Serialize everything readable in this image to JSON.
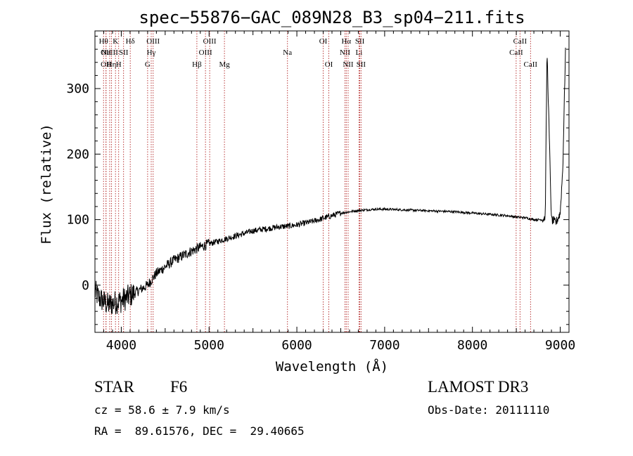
{
  "chart_data": {
    "type": "line",
    "title": "spec−55876−GAC_089N28_B3_sp04−211.fits",
    "xlabel": "Wavelength (Å)",
    "ylabel": "Flux (relative)",
    "xlim": [
      3700,
      9100
    ],
    "ylim": [
      -72,
      388
    ],
    "xticks": [
      4000,
      5000,
      6000,
      7000,
      8000,
      9000
    ],
    "yticks": [
      0,
      100,
      200,
      300
    ],
    "series": [
      {
        "name": "spectrum",
        "x": [
          3700,
          3750,
          3800,
          3850,
          3900,
          3950,
          4000,
          4050,
          4100,
          4150,
          4200,
          4300,
          4400,
          4500,
          4600,
          4700,
          4800,
          4900,
          5000,
          5100,
          5200,
          5300,
          5400,
          5500,
          5600,
          5700,
          5800,
          5900,
          6000,
          6100,
          6200,
          6300,
          6400,
          6500,
          6600,
          6700,
          6800,
          6900,
          7000,
          7200,
          7400,
          7600,
          7800,
          8000,
          8200,
          8400,
          8500,
          8600,
          8700,
          8800,
          8830,
          8850,
          8900,
          8950,
          9000,
          9030,
          9060
        ],
        "y": [
          -10,
          -20,
          -25,
          -30,
          -28,
          -25,
          -24,
          -20,
          -16,
          -12,
          -8,
          0,
          18,
          28,
          38,
          45,
          52,
          58,
          63,
          67,
          71,
          75,
          79,
          83,
          85,
          87,
          89,
          90,
          92,
          95,
          98,
          102,
          106,
          110,
          112,
          114,
          115,
          116,
          116,
          115,
          114,
          113,
          112,
          110,
          108,
          106,
          104,
          103,
          100,
          100,
          105,
          360,
          100,
          95,
          110,
          180,
          360
        ]
      }
    ],
    "lines": [
      {
        "x": 3798,
        "label": "Hθ",
        "row": 0
      },
      {
        "x": 3826,
        "label": "OII",
        "row": 1
      },
      {
        "x": 3826,
        "label": "OII",
        "row": 2
      },
      {
        "x": 3868,
        "label": "NeIII",
        "row": 1
      },
      {
        "x": 3889,
        "label": "Hη",
        "row": 2
      },
      {
        "x": 3934,
        "label": "K",
        "row": 0
      },
      {
        "x": 3970,
        "label": "H",
        "row": 2
      },
      {
        "x": 4026,
        "label": "SII",
        "row": 1
      },
      {
        "x": 4102,
        "label": "Hδ",
        "row": 0
      },
      {
        "x": 4300,
        "label": "G",
        "row": 2
      },
      {
        "x": 4341,
        "label": "Hγ",
        "row": 1
      },
      {
        "x": 4363,
        "label": "OIII",
        "row": 0
      },
      {
        "x": 4861,
        "label": "Hβ",
        "row": 2
      },
      {
        "x": 4959,
        "label": "OIII",
        "row": 1
      },
      {
        "x": 5007,
        "label": "OIII",
        "row": 0
      },
      {
        "x": 5175,
        "label": "Mg",
        "row": 2
      },
      {
        "x": 5893,
        "label": "Na",
        "row": 1
      },
      {
        "x": 6300,
        "label": "OI",
        "row": 0
      },
      {
        "x": 6364,
        "label": "OI",
        "row": 2
      },
      {
        "x": 6548,
        "label": "NII",
        "row": 1
      },
      {
        "x": 6563,
        "label": "Hα",
        "row": 0
      },
      {
        "x": 6584,
        "label": "NII",
        "row": 2
      },
      {
        "x": 6708,
        "label": "Li",
        "row": 1
      },
      {
        "x": 6717,
        "label": "SII",
        "row": 0
      },
      {
        "x": 6731,
        "label": "SII",
        "row": 2
      },
      {
        "x": 8498,
        "label": "CaII",
        "row": 1
      },
      {
        "x": 8542,
        "label": "CaII",
        "row": 0
      },
      {
        "x": 8662,
        "label": "CaII",
        "row": 2
      }
    ]
  },
  "info": {
    "object_class": "STAR",
    "subclass": "F6",
    "survey": "LAMOST DR3",
    "cz": "cz = 58.6 ± 7.9 km/s",
    "obs_date": "Obs-Date: 20111110",
    "coords": "RA =  89.61576, DEC =  29.40665"
  },
  "colors": {
    "line_marker": "#b22222",
    "spectrum": "#000000"
  }
}
